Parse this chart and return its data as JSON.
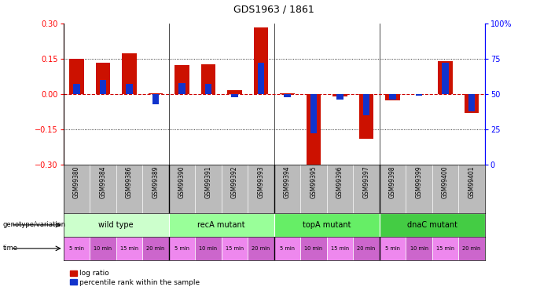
{
  "title": "GDS1963 / 1861",
  "samples": [
    "GSM99380",
    "GSM99384",
    "GSM99386",
    "GSM99389",
    "GSM99390",
    "GSM99391",
    "GSM99392",
    "GSM99393",
    "GSM99394",
    "GSM99395",
    "GSM99396",
    "GSM99397",
    "GSM99398",
    "GSM99399",
    "GSM99400",
    "GSM99401"
  ],
  "log_ratio": [
    0.15,
    0.135,
    0.175,
    0.002,
    0.125,
    0.128,
    0.018,
    0.285,
    0.003,
    -0.305,
    -0.01,
    -0.19,
    -0.025,
    0.0,
    0.14,
    -0.08
  ],
  "percentile_rank": [
    57,
    60,
    57,
    43,
    58,
    57,
    48,
    72,
    48,
    22,
    46,
    35,
    46,
    49,
    72,
    38
  ],
  "groups": [
    {
      "label": "wild type",
      "start": 0,
      "end": 4,
      "color": "#ccffcc"
    },
    {
      "label": "recA mutant",
      "start": 4,
      "end": 8,
      "color": "#99ff99"
    },
    {
      "label": "topA mutant",
      "start": 8,
      "end": 12,
      "color": "#66ee66"
    },
    {
      "label": "dnaC mutant",
      "start": 12,
      "end": 16,
      "color": "#44cc44"
    }
  ],
  "time_labels": [
    "5 min",
    "10 min",
    "15 min",
    "20 min",
    "5 min",
    "10 min",
    "15 min",
    "20 min",
    "5 min",
    "10 min",
    "15 min",
    "20 min",
    "5 min",
    "10 min",
    "15 min",
    "20 min"
  ],
  "ylim": [
    -0.3,
    0.3
  ],
  "right_ylim": [
    0,
    100
  ],
  "bar_color_red": "#cc1100",
  "bar_color_blue": "#1133cc",
  "zero_line_color": "#cc0000",
  "grid_line_color": "#000000",
  "bg_color": "#ffffff",
  "sample_bg_color": "#bbbbbb",
  "time_colors": [
    "#ee88ee",
    "#cc66cc",
    "#ee88ee",
    "#cc66cc",
    "#ee88ee",
    "#cc66cc",
    "#ee88ee",
    "#cc66cc",
    "#ee88ee",
    "#cc66cc",
    "#ee88ee",
    "#cc66cc",
    "#ee88ee",
    "#cc66cc",
    "#ee88ee",
    "#cc66cc"
  ]
}
